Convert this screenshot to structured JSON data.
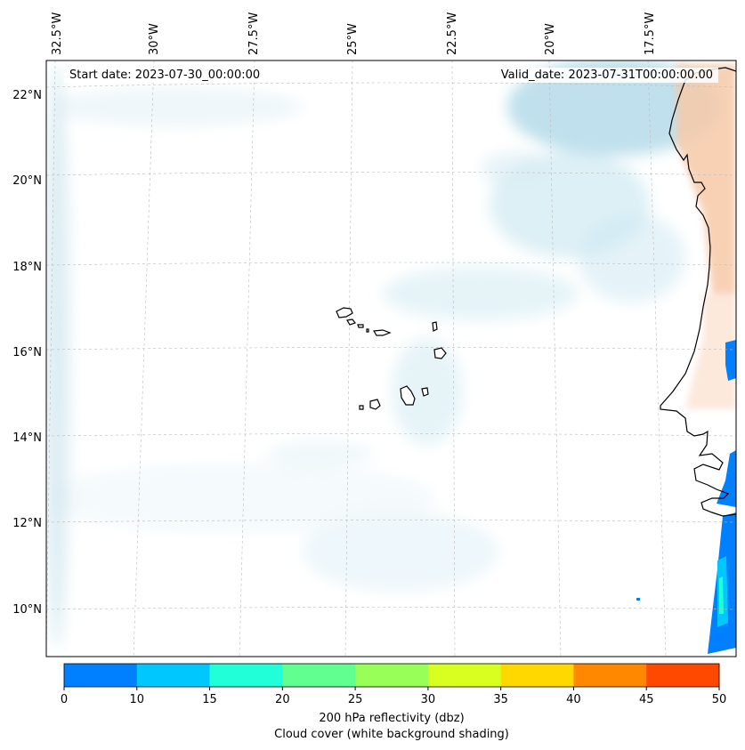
{
  "map": {
    "start_label": "Start date: 2023-07-30_00:00:00",
    "valid_label": "Valid_date: 2023-07-31T00:00:00.00",
    "lon_labels": [
      "32.5°W",
      "30°W",
      "27.5°W",
      "25°W",
      "22.5°W",
      "20°W",
      "17.5°W"
    ],
    "lat_labels": [
      "22°N",
      "20°N",
      "18°N",
      "16°N",
      "14°N",
      "12°N",
      "10°N"
    ],
    "region": "Cape Verde Islands and West African coast"
  },
  "colorbar": {
    "ticks": [
      "0",
      "10",
      "15",
      "20",
      "25",
      "30",
      "35",
      "40",
      "45",
      "50"
    ],
    "colors": [
      "#0080ff",
      "#00c8ff",
      "#20ffd8",
      "#60ff90",
      "#98ff58",
      "#d8ff20",
      "#ffd800",
      "#ff8800",
      "#ff4800"
    ],
    "label_line1": "200 hPa reflectivity (dbz)",
    "label_line2": "Cloud cover (white background shading)"
  }
}
